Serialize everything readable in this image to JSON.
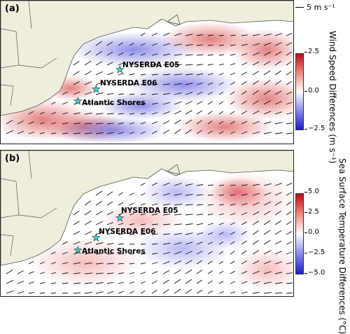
{
  "reference_vector": {
    "label": "5 m s⁻¹",
    "magnitude": 5
  },
  "panels": [
    {
      "label": "(a)",
      "field": "wind-speed-difference",
      "colorbar": {
        "title": "Wind Speed Differences (m s⁻¹)",
        "ticks": [
          "2.5",
          "0.0",
          "−2.5"
        ],
        "range": [
          -2.5,
          2.5
        ]
      },
      "sites": [
        {
          "name": "NYSERDA E05"
        },
        {
          "name": "NYSERDA E06"
        },
        {
          "name": "Atlantic Shores"
        }
      ]
    },
    {
      "label": "(b)",
      "field": "sea-surface-temperature-difference",
      "colorbar": {
        "title": "Sea Surface Temperature Differences (°C)",
        "ticks": [
          "5.0",
          "2.5",
          "0.0",
          "−2.5",
          "−5.0"
        ],
        "range": [
          -5.0,
          5.0
        ]
      },
      "sites": [
        {
          "name": "NYSERDA E05"
        },
        {
          "name": "NYSERDA E06"
        },
        {
          "name": "Atlantic Shores"
        }
      ]
    }
  ],
  "colors": {
    "land": "#efeedd",
    "positive": "#c00a16",
    "negative": "#1a1ac8",
    "site_marker": "#3dd6cf"
  },
  "icons": {
    "site_marker": "star-icon"
  }
}
